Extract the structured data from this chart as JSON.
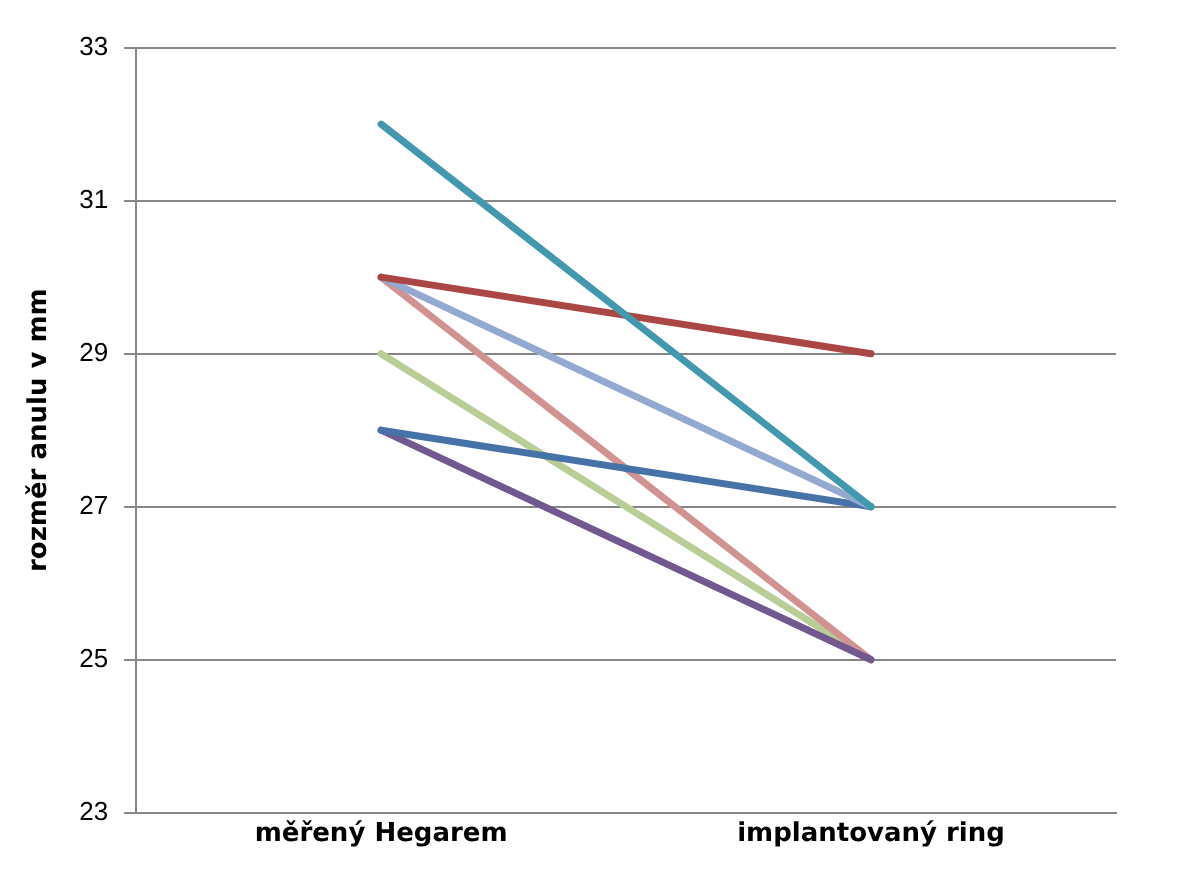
{
  "chart_data": {
    "type": "line",
    "ylabel": "rozměr anulu v mm",
    "categories": [
      "měřený Hegarem",
      "implantovaný ring"
    ],
    "series": [
      {
        "color": "#4198af",
        "values": [
          32,
          27
        ]
      },
      {
        "color": "#aa4643",
        "values": [
          30,
          29
        ]
      },
      {
        "color": "#93a9cf",
        "values": [
          30,
          27
        ]
      },
      {
        "color": "#4572a7",
        "values": [
          28,
          27
        ]
      },
      {
        "color": "#71588f",
        "values": [
          28,
          25
        ]
      },
      {
        "color": "#d19392",
        "values": [
          30,
          25
        ]
      },
      {
        "color": "#b9cd96",
        "values": [
          29,
          25
        ]
      }
    ],
    "ylim": [
      23,
      33
    ],
    "yticks": [
      23,
      25,
      27,
      29,
      31,
      33
    ],
    "grid": "y",
    "marker": "none",
    "line_style": "solid",
    "legend": false
  }
}
